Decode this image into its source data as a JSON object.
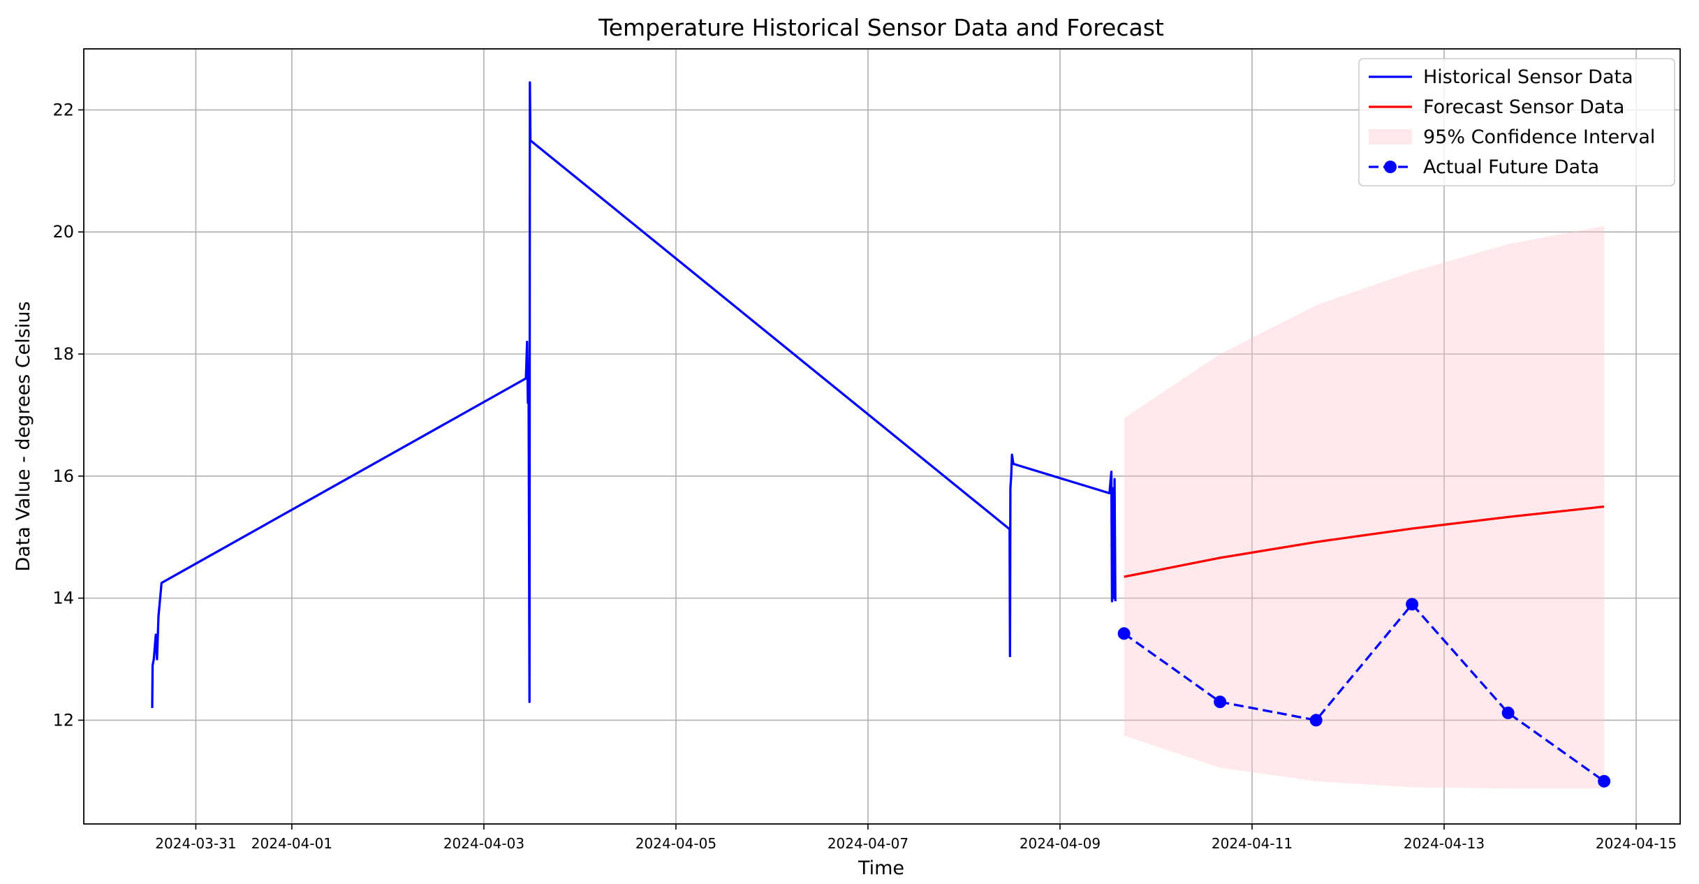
{
  "chart_data": {
    "type": "line",
    "title": "Temperature Historical Sensor Data and Forecast",
    "xlabel": "Time",
    "ylabel": "Data Value - degrees Celsius",
    "x_tick_labels": [
      "2024-03-31",
      "2024-04-01",
      "2024-04-03",
      "2024-04-05",
      "2024-04-07",
      "2024-04-09",
      "2024-04-11",
      "2024-04-13",
      "2024-04-15"
    ],
    "y_ticks": [
      12,
      14,
      16,
      18,
      20,
      22
    ],
    "xlim": [
      "2024-03-29T20:00",
      "2024-04-15T11:00"
    ],
    "ylim": [
      10.3,
      23.0
    ],
    "grid": true,
    "legend_position": "top-right",
    "series": [
      {
        "name": "Historical Sensor Data",
        "color": "#0000ff",
        "style": "solid",
        "points": [
          [
            "2024-03-30T13:06",
            12.2
          ],
          [
            "2024-03-30T13:12",
            12.9
          ],
          [
            "2024-03-30T13:30",
            13.0
          ],
          [
            "2024-03-30T14:00",
            13.4
          ],
          [
            "2024-03-30T14:18",
            13.0
          ],
          [
            "2024-03-30T14:40",
            13.7
          ],
          [
            "2024-03-30T15:26",
            14.25
          ],
          [
            "2024-04-03T10:30",
            17.6
          ],
          [
            "2024-04-03T10:48",
            18.2
          ],
          [
            "2024-04-03T11:00",
            17.2
          ],
          [
            "2024-04-03T11:10",
            17.7
          ],
          [
            "2024-04-03T11:24",
            12.3
          ],
          [
            "2024-04-03T11:30",
            22.45
          ],
          [
            "2024-04-03T11:38",
            21.5
          ],
          [
            "2024-04-08T11:24",
            15.13
          ],
          [
            "2024-04-08T11:30",
            13.05
          ],
          [
            "2024-04-08T11:36",
            15.8
          ],
          [
            "2024-04-08T11:48",
            16.0
          ],
          [
            "2024-04-08T12:00",
            16.35
          ],
          [
            "2024-04-08T12:20",
            16.2
          ],
          [
            "2024-04-09T12:22",
            15.72
          ],
          [
            "2024-04-09T12:36",
            15.9
          ],
          [
            "2024-04-09T12:50",
            16.07
          ],
          [
            "2024-04-09T13:00",
            13.95
          ],
          [
            "2024-04-09T13:14",
            15.8
          ],
          [
            "2024-04-09T13:26",
            14.0
          ],
          [
            "2024-04-09T13:38",
            15.95
          ],
          [
            "2024-04-09T13:50",
            13.95
          ]
        ]
      },
      {
        "name": "Forecast Sensor Data",
        "color": "#ff0000",
        "style": "solid",
        "points": [
          [
            "2024-04-09T16:00",
            14.35
          ],
          [
            "2024-04-10T16:00",
            14.66
          ],
          [
            "2024-04-11T16:00",
            14.92
          ],
          [
            "2024-04-12T16:00",
            15.14
          ],
          [
            "2024-04-13T16:00",
            15.33
          ],
          [
            "2024-04-14T16:00",
            15.5
          ]
        ]
      },
      {
        "name": "95% Confidence Interval",
        "color": "#ffc0cb",
        "style": "band",
        "x": [
          "2024-04-09T16:00",
          "2024-04-10T16:00",
          "2024-04-11T16:00",
          "2024-04-12T16:00",
          "2024-04-13T16:00",
          "2024-04-14T16:00"
        ],
        "lower": [
          11.75,
          11.22,
          11.0,
          10.9,
          10.88,
          10.88
        ],
        "upper": [
          16.95,
          18.0,
          18.8,
          19.35,
          19.8,
          20.1
        ]
      },
      {
        "name": "Actual Future Data",
        "color": "#0000ff",
        "style": "dashed-markers",
        "points": [
          [
            "2024-04-09T16:00",
            13.42
          ],
          [
            "2024-04-10T16:00",
            12.3
          ],
          [
            "2024-04-11T16:00",
            12.0
          ],
          [
            "2024-04-12T16:00",
            13.9
          ],
          [
            "2024-04-13T16:00",
            12.12
          ],
          [
            "2024-04-14T16:00",
            11.0
          ]
        ]
      }
    ]
  }
}
